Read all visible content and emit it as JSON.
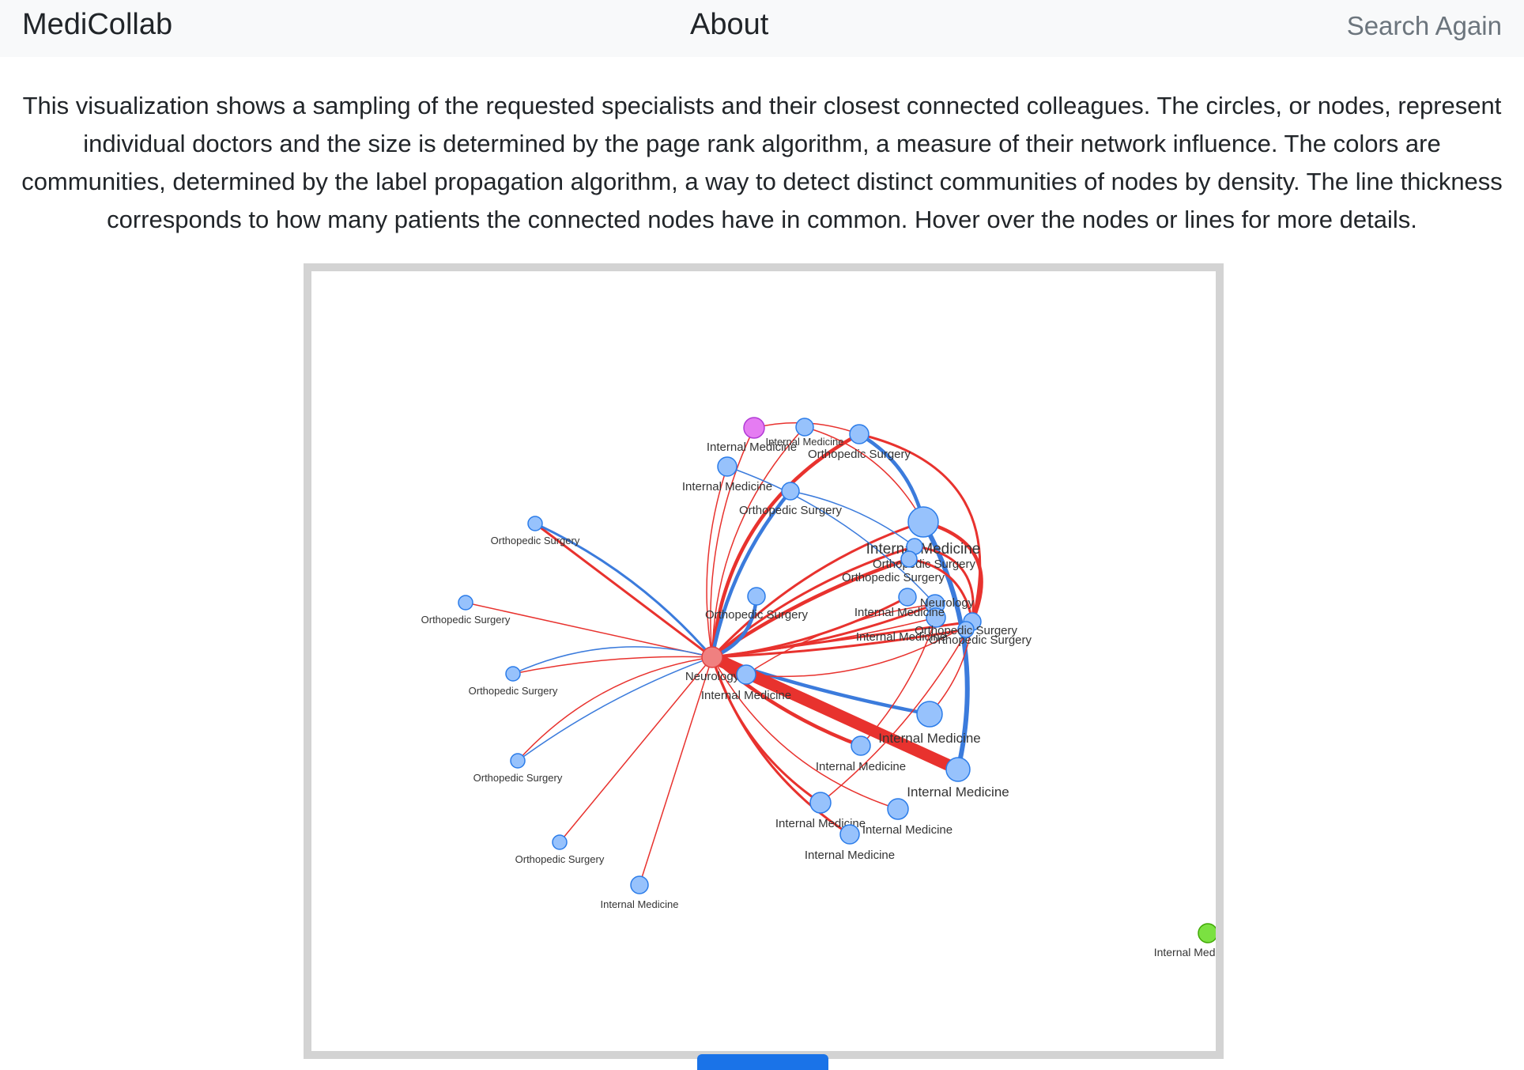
{
  "navbar": {
    "brand": "MediCollab",
    "about": "About",
    "search_again": "Search Again"
  },
  "description": "This visualization shows a sampling of the requested specialists and their closest connected colleagues. The circles, or nodes, represent individual doctors and the size is determined by the page rank algorithm, a measure of their network influence. The colors are communities, determined by the label propagation algorithm, a way to detect distinct communities of nodes by density. The line thickness corresponds to how many patients the connected nodes have in common. Hover over the nodes or lines for more details.",
  "colors": {
    "node_blue": "#97c2fc",
    "node_blue_border": "#2b7ce9",
    "node_red": "#f08080",
    "node_magenta": "#e57cf2",
    "node_green": "#7be141",
    "edge_red": "#e8322e",
    "edge_blue": "#3b7bdc",
    "frame_border": "#d3d3d3",
    "button": "#1a73e8"
  },
  "graph": {
    "nodes": [
      {
        "id": "hub",
        "label": "Neurology",
        "color": "red"
      },
      {
        "id": "n1",
        "label": "Internal Medicine",
        "color": "magenta"
      },
      {
        "id": "n2",
        "label": "Internal Medicine",
        "color": "blue"
      },
      {
        "id": "n3",
        "label": "Orthopedic Surgery",
        "color": "blue"
      },
      {
        "id": "n4",
        "label": "Internal Medicine",
        "color": "blue"
      },
      {
        "id": "n5",
        "label": "Orthopedic Surgery",
        "color": "blue"
      },
      {
        "id": "n6",
        "label": "Internal Medicine",
        "color": "blue"
      },
      {
        "id": "n7",
        "label": "Orthopedic Surgery",
        "color": "blue"
      },
      {
        "id": "n8",
        "label": "Orthopedic Surgery",
        "color": "blue"
      },
      {
        "id": "n9",
        "label": "Neurology",
        "color": "blue"
      },
      {
        "id": "n10",
        "label": "Internal Medicine",
        "color": "blue"
      },
      {
        "id": "n11",
        "label": "Orthopedic Surgery",
        "color": "blue"
      },
      {
        "id": "n12",
        "label": "Orthopedic Surgery",
        "color": "blue"
      },
      {
        "id": "n13",
        "label": "Internal Medicine",
        "color": "blue"
      },
      {
        "id": "n14",
        "label": "Internal Medicine",
        "color": "blue"
      },
      {
        "id": "n15",
        "label": "Internal Medicine",
        "color": "blue"
      },
      {
        "id": "n16",
        "label": "Internal Medicine",
        "color": "blue"
      },
      {
        "id": "n17",
        "label": "Internal Medicine",
        "color": "blue"
      },
      {
        "id": "n18",
        "label": "Internal Medicine",
        "color": "blue"
      },
      {
        "id": "n19",
        "label": "Internal Medicine",
        "color": "blue"
      },
      {
        "id": "n20",
        "label": "Orthopedic Surgery",
        "color": "blue"
      },
      {
        "id": "n21",
        "label": "Orthopedic Surgery",
        "color": "blue"
      },
      {
        "id": "n22",
        "label": "Orthopedic Surgery",
        "color": "blue"
      },
      {
        "id": "n23",
        "label": "Orthopedic Surgery",
        "color": "blue"
      },
      {
        "id": "n24",
        "label": "Orthopedic Surgery",
        "color": "blue"
      },
      {
        "id": "n25",
        "label": "Internal Medicine",
        "color": "blue"
      },
      {
        "id": "n26",
        "label": "Internal Medicine",
        "color": "blue"
      },
      {
        "id": "n27",
        "label": "Orthopedic Surgery",
        "color": "blue"
      },
      {
        "id": "n28",
        "label": "Internal Medicine",
        "color": "green"
      }
    ],
    "edges": [
      {
        "from": "hub",
        "to": "n1",
        "color": "red",
        "weight": 1
      },
      {
        "from": "hub",
        "to": "n2",
        "color": "red",
        "weight": 1
      },
      {
        "from": "hub",
        "to": "n3",
        "color": "red",
        "weight": 3
      },
      {
        "from": "hub",
        "to": "n4",
        "color": "red",
        "weight": 1
      },
      {
        "from": "hub",
        "to": "n5",
        "color": "blue",
        "weight": 3
      },
      {
        "from": "hub",
        "to": "n6",
        "color": "red",
        "weight": 2
      },
      {
        "from": "hub",
        "to": "n7",
        "color": "red",
        "weight": 2
      },
      {
        "from": "hub",
        "to": "n8",
        "color": "red",
        "weight": 3
      },
      {
        "from": "hub",
        "to": "n9",
        "color": "red",
        "weight": 2
      },
      {
        "from": "hub",
        "to": "n10",
        "color": "red",
        "weight": 1
      },
      {
        "from": "hub",
        "to": "n11",
        "color": "red",
        "weight": 2
      },
      {
        "from": "hub",
        "to": "n12",
        "color": "blue",
        "weight": 3
      },
      {
        "from": "hub",
        "to": "n13",
        "color": "red",
        "weight": 2
      },
      {
        "from": "hub",
        "to": "n14",
        "color": "red",
        "weight": 3
      },
      {
        "from": "hub",
        "to": "n15",
        "color": "blue",
        "weight": 3
      },
      {
        "from": "hub",
        "to": "n16",
        "color": "red",
        "weight": 10
      },
      {
        "from": "hub",
        "to": "n17",
        "color": "red",
        "weight": 2
      },
      {
        "from": "hub",
        "to": "n18",
        "color": "red",
        "weight": 1
      },
      {
        "from": "hub",
        "to": "n19",
        "color": "red",
        "weight": 2
      },
      {
        "from": "hub",
        "to": "n20",
        "color": "red",
        "weight": 2
      },
      {
        "from": "hub",
        "to": "n20",
        "color": "blue",
        "weight": 2
      },
      {
        "from": "hub",
        "to": "n21",
        "color": "red",
        "weight": 1
      },
      {
        "from": "hub",
        "to": "n22",
        "color": "red",
        "weight": 1
      },
      {
        "from": "hub",
        "to": "n22",
        "color": "blue",
        "weight": 1
      },
      {
        "from": "hub",
        "to": "n23",
        "color": "blue",
        "weight": 1
      },
      {
        "from": "hub",
        "to": "n23",
        "color": "red",
        "weight": 1
      },
      {
        "from": "hub",
        "to": "n24",
        "color": "red",
        "weight": 1
      },
      {
        "from": "hub",
        "to": "n25",
        "color": "red",
        "weight": 1
      },
      {
        "from": "hub",
        "to": "n26",
        "color": "red",
        "weight": 2
      },
      {
        "from": "hub",
        "to": "n27",
        "color": "red",
        "weight": 2
      },
      {
        "from": "n6",
        "to": "n16",
        "color": "blue",
        "weight": 4
      },
      {
        "from": "n6",
        "to": "n11",
        "color": "red",
        "weight": 3
      },
      {
        "from": "n3",
        "to": "n6",
        "color": "blue",
        "weight": 3
      },
      {
        "from": "n3",
        "to": "n11",
        "color": "red",
        "weight": 2
      },
      {
        "from": "n15",
        "to": "n11",
        "color": "red",
        "weight": 1
      },
      {
        "from": "n13",
        "to": "n11",
        "color": "red",
        "weight": 1
      },
      {
        "from": "n14",
        "to": "n10",
        "color": "red",
        "weight": 1
      },
      {
        "from": "n17",
        "to": "n11",
        "color": "red",
        "weight": 1
      },
      {
        "from": "n4",
        "to": "n9",
        "color": "blue",
        "weight": 1
      },
      {
        "from": "n5",
        "to": "n7",
        "color": "blue",
        "weight": 1
      },
      {
        "from": "n7",
        "to": "n11",
        "color": "red",
        "weight": 2
      },
      {
        "from": "n8",
        "to": "n11",
        "color": "red",
        "weight": 2
      },
      {
        "from": "n9",
        "to": "n13",
        "color": "red",
        "weight": 1
      },
      {
        "from": "n2",
        "to": "n6",
        "color": "red",
        "weight": 1
      },
      {
        "from": "n1",
        "to": "n3",
        "color": "red",
        "weight": 1
      }
    ]
  }
}
